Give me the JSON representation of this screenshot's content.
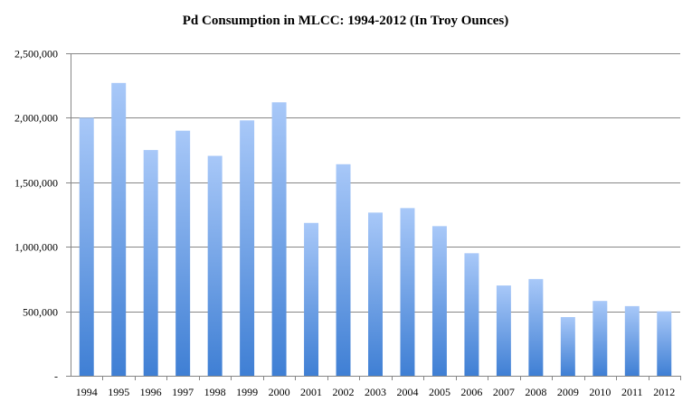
{
  "chart_data": {
    "type": "bar",
    "title": "Pd Consumption in MLCC: 1994-2012 (In Troy Ounces)",
    "xlabel": "",
    "ylabel": "",
    "categories": [
      "1994",
      "1995",
      "1996",
      "1997",
      "1998",
      "1999",
      "2000",
      "2001",
      "2002",
      "2003",
      "2004",
      "2005",
      "2006",
      "2007",
      "2008",
      "2009",
      "2010",
      "2011",
      "2012"
    ],
    "values": [
      2000000,
      2270000,
      1750000,
      1900000,
      1705000,
      1980000,
      2120000,
      1185000,
      1640000,
      1265000,
      1300000,
      1160000,
      950000,
      700000,
      750000,
      455000,
      580000,
      540000,
      500000
    ],
    "ylim": [
      0,
      2500000
    ],
    "yticks": [
      0,
      500000,
      1000000,
      1500000,
      2000000,
      2500000
    ],
    "ytick_labels": [
      "-",
      "500,000",
      "1,000,000",
      "1,500,000",
      "2,000,000",
      "2,500,000"
    ],
    "grid": true,
    "legend": "none",
    "colors": {
      "bar_top": "#a8c8f8",
      "bar_bottom": "#3f7fd4",
      "grid": "#868686",
      "axis": "#868686"
    }
  }
}
